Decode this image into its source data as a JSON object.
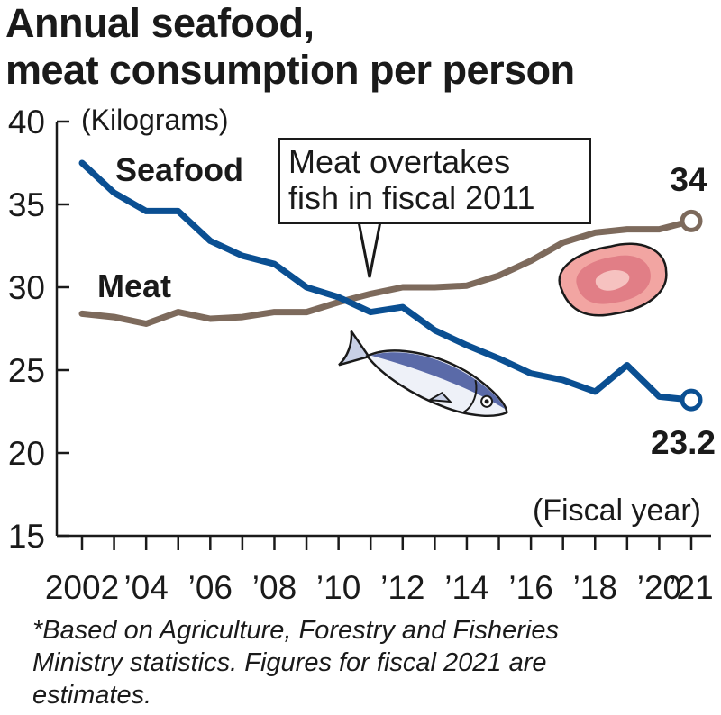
{
  "title": [
    "Annual seafood,",
    "meat consumption per person"
  ],
  "footnote": [
    "*Based on Agriculture, Forestry and Fisheries",
    "Ministry statistics. Figures for fiscal 2021 are",
    "estimates."
  ],
  "callout": [
    "Meat overtakes",
    "fish in fiscal 2011"
  ],
  "chart_data": {
    "type": "line",
    "title": "Annual seafood, meat consumption per person",
    "ylabel": "(Kilograms)",
    "xlabel": "(Fiscal year)",
    "ylim": [
      15,
      40
    ],
    "xlim": [
      2002,
      2021
    ],
    "yticks": [
      40,
      35,
      30,
      25,
      20,
      15
    ],
    "xtick_labels": [
      {
        "x": 2002,
        "label": "2002"
      },
      {
        "x": 2004,
        "label": "’04"
      },
      {
        "x": 2006,
        "label": "’06"
      },
      {
        "x": 2008,
        "label": "’08"
      },
      {
        "x": 2010,
        "label": "’10"
      },
      {
        "x": 2012,
        "label": "’12"
      },
      {
        "x": 2014,
        "label": "’14"
      },
      {
        "x": 2016,
        "label": "’16"
      },
      {
        "x": 2018,
        "label": "’18"
      },
      {
        "x": 2020,
        "label": "’20"
      },
      {
        "x": 2021,
        "label": "’21"
      }
    ],
    "x": [
      2002,
      2003,
      2004,
      2005,
      2006,
      2007,
      2008,
      2009,
      2010,
      2011,
      2012,
      2013,
      2014,
      2015,
      2016,
      2017,
      2018,
      2019,
      2020,
      2021
    ],
    "series": [
      {
        "name": "Seafood",
        "color": "#0a4f92",
        "values": [
          37.5,
          35.7,
          34.6,
          34.6,
          32.8,
          31.9,
          31.4,
          30.0,
          29.4,
          28.5,
          28.8,
          27.4,
          26.5,
          25.7,
          24.8,
          24.4,
          23.7,
          25.3,
          23.4,
          23.2
        ],
        "end_label": "23.2"
      },
      {
        "name": "Meat",
        "color": "#7d6a5c",
        "values": [
          28.4,
          28.2,
          27.8,
          28.5,
          28.1,
          28.2,
          28.5,
          28.5,
          29.1,
          29.6,
          30.0,
          30.0,
          30.1,
          30.7,
          31.6,
          32.7,
          33.3,
          33.5,
          33.5,
          34.0
        ],
        "end_label": "34"
      }
    ],
    "grid": false,
    "legend": "inline labels near lines"
  }
}
